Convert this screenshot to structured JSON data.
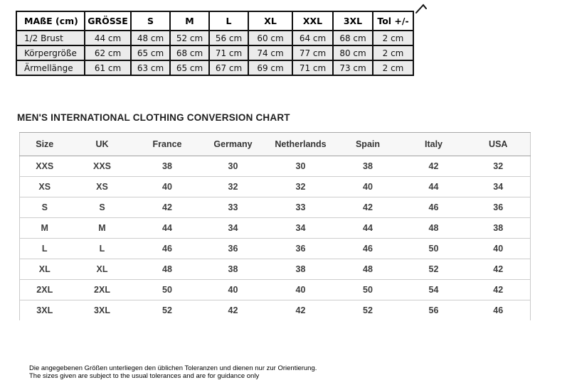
{
  "chart_data": [
    {
      "type": "table",
      "name": "german-size-table",
      "columns": [
        "MAßE (cm)",
        "GRÖSSE",
        "S",
        "M",
        "L",
        "XL",
        "XXL",
        "3XL",
        "Tol +/-"
      ],
      "rows": [
        [
          "1/2 Brust",
          "44 cm",
          "48 cm",
          "52 cm",
          "56 cm",
          "60 cm",
          "64 cm",
          "68 cm",
          "2 cm"
        ],
        [
          "Körpergröße",
          "62 cm",
          "65 cm",
          "68 cm",
          "71 cm",
          "74 cm",
          "77 cm",
          "80 cm",
          "2 cm"
        ],
        [
          "Ärmellänge",
          "61 cm",
          "63 cm",
          "65 cm",
          "67 cm",
          "69 cm",
          "71 cm",
          "73 cm",
          "2 cm"
        ]
      ]
    },
    {
      "type": "table",
      "name": "international-conversion-chart",
      "title": "MEN'S INTERNATIONAL CLOTHING CONVERSION CHART",
      "columns": [
        "Size",
        "UK",
        "France",
        "Germany",
        "Netherlands",
        "Spain",
        "Italy",
        "USA"
      ],
      "rows": [
        [
          "XXS",
          "XXS",
          "38",
          "30",
          "30",
          "38",
          "42",
          "32"
        ],
        [
          "XS",
          "XS",
          "40",
          "32",
          "32",
          "40",
          "44",
          "34"
        ],
        [
          "S",
          "S",
          "42",
          "33",
          "33",
          "42",
          "46",
          "36"
        ],
        [
          "M",
          "M",
          "44",
          "34",
          "34",
          "44",
          "48",
          "38"
        ],
        [
          "L",
          "L",
          "46",
          "36",
          "36",
          "46",
          "50",
          "40"
        ],
        [
          "XL",
          "XL",
          "48",
          "38",
          "38",
          "48",
          "52",
          "42"
        ],
        [
          "2XL",
          "2XL",
          "50",
          "40",
          "40",
          "50",
          "54",
          "42"
        ],
        [
          "3XL",
          "3XL",
          "52",
          "42",
          "42",
          "52",
          "56",
          "46"
        ]
      ]
    }
  ],
  "icons": {
    "expand_arrow": "↗"
  },
  "footer": {
    "line_de": "Die angegebenen Größen unterliegen den üblichen Toleranzen und dienen nur zur Orientierung.",
    "line_en": "The sizes given are subject to the usual tolerances and are for guidance only"
  },
  "colors": {
    "size_table_border": "#0e0e0e",
    "size_table_cell_bg": "#ebebeb",
    "conversion_rule": "#cdcdcd",
    "conversion_header_rule": "#a0a0a0",
    "text": "#222222"
  }
}
